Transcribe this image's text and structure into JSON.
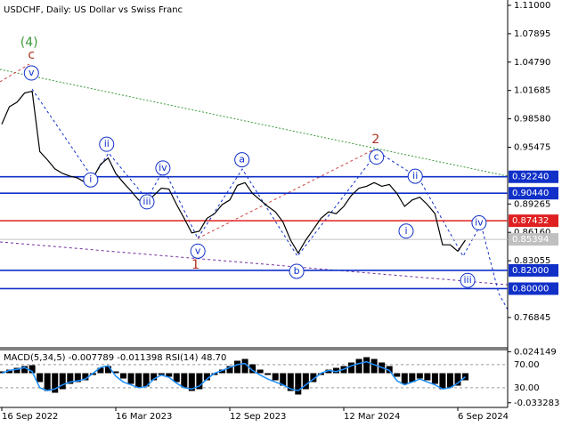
{
  "chart_data": [
    {
      "type": "line",
      "title": "USDCHF, Daily:  US Dollar vs Swiss Franc",
      "categories": [
        "16 Sep 2022",
        null,
        null,
        null,
        null,
        null,
        null,
        null,
        null,
        null,
        null,
        null,
        null,
        null,
        null,
        "16 Mar 2023",
        null,
        null,
        null,
        null,
        null,
        null,
        null,
        null,
        null,
        null,
        null,
        null,
        null,
        null,
        "12 Sep 2023",
        null,
        null,
        null,
        null,
        null,
        null,
        null,
        null,
        null,
        null,
        null,
        null,
        null,
        null,
        "12 Mar 2024",
        null,
        null,
        null,
        null,
        null,
        null,
        null,
        null,
        null,
        null,
        null,
        null,
        null,
        null,
        "6 Sep 2024",
        null
      ],
      "values": [
        0.98,
        0.999,
        1.004,
        1.014,
        1.016,
        0.95,
        0.941,
        0.931,
        0.926,
        0.923,
        0.921,
        0.916,
        0.921,
        0.936,
        0.943,
        0.926,
        0.916,
        0.907,
        0.897,
        0.894,
        0.902,
        0.91,
        0.909,
        0.892,
        0.877,
        0.861,
        0.863,
        0.877,
        0.882,
        0.892,
        0.897,
        0.913,
        0.916,
        0.904,
        0.897,
        0.89,
        0.884,
        0.873,
        0.853,
        0.839,
        0.853,
        0.865,
        0.877,
        0.884,
        0.882,
        0.89,
        0.902,
        0.91,
        0.912,
        0.916,
        0.912,
        0.914,
        0.904,
        0.89,
        0.897,
        0.9,
        0.892,
        0.882,
        0.848,
        0.848,
        0.841,
        0.853
      ],
      "color": "#000000",
      "ylim": [
        0.73623,
        1.11584
      ],
      "yticks": [
        {
          "value": 1.11,
          "label": "1.11000"
        },
        1.07895,
        {
          "value": 1.0479,
          "label": "1.04790"
        },
        1.01685,
        {
          "value": 0.9858,
          "label": "0.98580"
        },
        0.95475,
        0.89265,
        {
          "value": 0.8616,
          "label": "0.86160"
        },
        0.83055,
        0.76845
      ],
      "levels": [
        {
          "value": 0.9224,
          "label": "0.92240",
          "color": "#1030c8"
        },
        {
          "value": 0.9044,
          "label": "0.90440",
          "color": "#1030c8"
        },
        {
          "value": 0.87432,
          "label": "0.87432",
          "color": "#e02020"
        },
        {
          "value": 0.85394,
          "label": "0.85394",
          "color": "#c0c0c0"
        },
        {
          "value": 0.82,
          "label": "0.82000",
          "color": "#1030c8"
        },
        {
          "value": 0.8,
          "label": "0.80000",
          "color": "#1030c8"
        }
      ],
      "annotations": [
        {
          "text": "(4)",
          "x": 3.6,
          "y": 1.069,
          "color": "#3a9a3a",
          "circled": false
        },
        {
          "text": "c",
          "x": 3.9,
          "y": 1.0555,
          "color": "#b03020",
          "circled": false
        },
        {
          "text": "v",
          "x": 3.9,
          "y": 1.036,
          "color": "#1030c8",
          "circled": true
        },
        {
          "text": "ii",
          "x": 13.8,
          "y": 0.958,
          "color": "#1030c8",
          "circled": true
        },
        {
          "text": "i",
          "x": 11.7,
          "y": 0.919,
          "color": "#1030c8",
          "circled": true
        },
        {
          "text": "iv",
          "x": 21.2,
          "y": 0.932,
          "color": "#1030c8",
          "circled": true
        },
        {
          "text": "iii",
          "x": 19.1,
          "y": 0.895,
          "color": "#1030c8",
          "circled": true
        },
        {
          "text": "v",
          "x": 25.8,
          "y": 0.841,
          "color": "#1030c8",
          "circled": true
        },
        {
          "text": "1",
          "x": 25.5,
          "y": 0.826,
          "color": "#b03020",
          "circled": false
        },
        {
          "text": "a",
          "x": 31.6,
          "y": 0.941,
          "color": "#1030c8",
          "circled": true
        },
        {
          "text": "b",
          "x": 38.8,
          "y": 0.819,
          "color": "#1030c8",
          "circled": true
        },
        {
          "text": "2",
          "x": 49.2,
          "y": 0.963,
          "color": "#b03020",
          "circled": false
        },
        {
          "text": "c",
          "x": 49.3,
          "y": 0.944,
          "color": "#1030c8",
          "circled": true
        },
        {
          "text": "ii",
          "x": 54.4,
          "y": 0.923,
          "color": "#1030c8",
          "circled": true
        },
        {
          "text": "i",
          "x": 53.2,
          "y": 0.863,
          "color": "#1030c8",
          "circled": true
        },
        {
          "text": "iv",
          "x": 62.8,
          "y": 0.872,
          "color": "#1030c8",
          "circled": true
        },
        {
          "text": "iii",
          "x": 61.3,
          "y": 0.809,
          "color": "#1030c8",
          "circled": true
        }
      ]
    },
    {
      "type": "macd",
      "title": "MACD(5,34,5) -0.007789 -0.011398 RSI(14) 48.70",
      "values": [
        0.002,
        0.004,
        0.006,
        0.008,
        0.009,
        -0.01,
        -0.02,
        -0.022,
        -0.018,
        -0.012,
        -0.01,
        -0.008,
        -0.002,
        0.006,
        0.008,
        0.002,
        -0.006,
        -0.012,
        -0.016,
        -0.015,
        -0.008,
        -0.002,
        -0.004,
        -0.01,
        -0.016,
        -0.02,
        -0.018,
        -0.008,
        -0.002,
        0.004,
        0.008,
        0.014,
        0.016,
        0.01,
        0.004,
        -0.002,
        -0.008,
        -0.014,
        -0.02,
        -0.024,
        -0.018,
        -0.01,
        -0.002,
        0.004,
        0.006,
        0.008,
        0.012,
        0.016,
        0.018,
        0.016,
        0.012,
        0.008,
        -0.004,
        -0.012,
        -0.01,
        -0.006,
        -0.008,
        -0.012,
        -0.018,
        -0.016,
        -0.014,
        -0.008
      ],
      "color": "#000000",
      "ylim": [
        -0.0385,
        0.0265
      ],
      "yticks": [
        0.024149,
        -0.033283
      ],
      "rsi": {
        "values": [
          55,
          60,
          62,
          65,
          58,
          30,
          25,
          28,
          35,
          40,
          42,
          45,
          55,
          65,
          68,
          50,
          40,
          35,
          30,
          32,
          45,
          52,
          48,
          38,
          30,
          28,
          33,
          45,
          55,
          60,
          65,
          70,
          72,
          60,
          52,
          45,
          40,
          35,
          28,
          25,
          35,
          45,
          55,
          60,
          58,
          62,
          68,
          72,
          75,
          70,
          65,
          60,
          42,
          35,
          40,
          45,
          40,
          35,
          28,
          30,
          38,
          48.7
        ],
        "color": "#1e90ff",
        "ylim": [
          -4,
          96
        ],
        "yticks": [
          {
            "value": 70,
            "label": "70.00"
          },
          {
            "value": 30,
            "label": "30.00"
          }
        ]
      }
    }
  ]
}
